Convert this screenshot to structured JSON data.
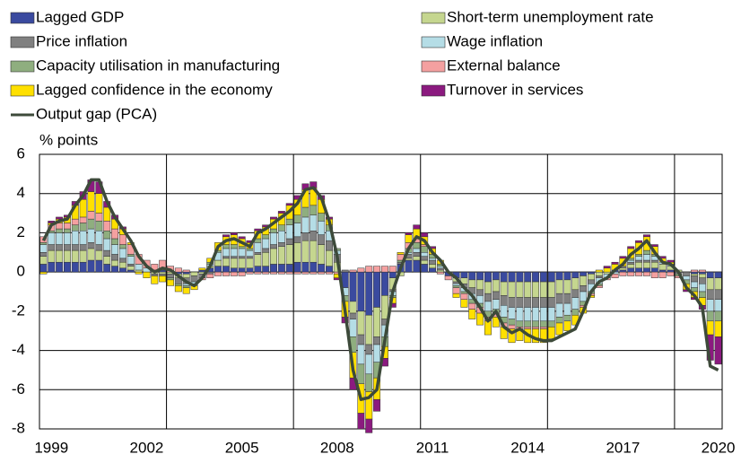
{
  "chart_data": {
    "type": "stacked-bar-line",
    "y_axis_label": "% points",
    "ylim": [
      -8,
      6
    ],
    "yticks": [
      -8,
      -6,
      -4,
      -2,
      0,
      2,
      4,
      6
    ],
    "grid": true,
    "categories": [
      null,
      "1999",
      null,
      null,
      null,
      null,
      null,
      null,
      null,
      null,
      null,
      null,
      null,
      "2002",
      null,
      null,
      null,
      null,
      null,
      null,
      null,
      null,
      null,
      null,
      null,
      "2005",
      null,
      null,
      null,
      null,
      null,
      null,
      null,
      null,
      null,
      null,
      null,
      "2008",
      null,
      null,
      null,
      null,
      null,
      null,
      null,
      null,
      null,
      null,
      null,
      "2011",
      null,
      null,
      null,
      null,
      null,
      null,
      null,
      null,
      null,
      null,
      null,
      "2014",
      null,
      null,
      null,
      null,
      null,
      null,
      null,
      null,
      null,
      null,
      null,
      "2017",
      null,
      null,
      null,
      null,
      null,
      null,
      null,
      null,
      null,
      null,
      null,
      "2020"
    ],
    "series": [
      {
        "name": "Lagged GDP",
        "color": "#3a4a9f",
        "values": [
          0.4,
          0.5,
          0.5,
          0.5,
          0.5,
          0.5,
          0.6,
          0.6,
          0.4,
          0.3,
          0.2,
          0.1,
          0.0,
          0.0,
          0.0,
          0.1,
          0.0,
          -0.1,
          -0.1,
          0.0,
          0.1,
          0.2,
          0.3,
          0.3,
          0.2,
          0.2,
          0.2,
          0.3,
          0.3,
          0.4,
          0.4,
          0.4,
          0.5,
          0.5,
          0.5,
          0.4,
          0.3,
          0.0,
          -0.8,
          -1.5,
          -2.0,
          -2.2,
          -1.8,
          -1.2,
          -0.3,
          0.4,
          0.6,
          0.6,
          0.4,
          0.2,
          0.0,
          -0.2,
          -0.3,
          -0.3,
          -0.4,
          -0.4,
          -0.5,
          -0.4,
          -0.5,
          -0.5,
          -0.5,
          -0.5,
          -0.5,
          -0.5,
          -0.5,
          -0.4,
          -0.4,
          -0.3,
          -0.2,
          -0.1,
          0.0,
          0.0,
          0.1,
          0.1,
          0.2,
          0.2,
          0.2,
          0.2,
          0.1,
          0.1,
          0.0,
          0.0,
          -0.1,
          -0.1,
          -0.3,
          -0.3
        ]
      },
      {
        "name": "Short-term unemployment rate",
        "color": "#c5d68f",
        "values": [
          0.4,
          0.6,
          0.6,
          0.6,
          0.6,
          0.6,
          0.6,
          0.5,
          0.4,
          0.3,
          0.3,
          0.2,
          0.1,
          0.0,
          -0.1,
          -0.1,
          -0.1,
          -0.2,
          -0.2,
          -0.2,
          -0.1,
          0.1,
          0.3,
          0.4,
          0.5,
          0.5,
          0.5,
          0.6,
          0.7,
          0.8,
          0.9,
          1.0,
          1.0,
          1.1,
          1.1,
          1.0,
          0.8,
          0.5,
          0.0,
          -0.6,
          -1.2,
          -1.5,
          -1.5,
          -1.2,
          -0.6,
          -0.2,
          0.1,
          0.2,
          0.2,
          0.2,
          0.1,
          0.0,
          -0.2,
          -0.3,
          -0.4,
          -0.5,
          -0.6,
          -0.6,
          -0.7,
          -0.8,
          -0.8,
          -0.8,
          -0.8,
          -0.8,
          -0.8,
          -0.7,
          -0.7,
          -0.6,
          -0.5,
          -0.3,
          -0.2,
          -0.1,
          0.0,
          0.1,
          0.2,
          0.3,
          0.3,
          0.3,
          0.3,
          0.2,
          0.1,
          0.0,
          -0.1,
          -0.2,
          -0.6,
          -0.6
        ]
      },
      {
        "name": "Price inflation",
        "color": "#808080",
        "values": [
          0.2,
          0.3,
          0.3,
          0.3,
          0.3,
          0.3,
          0.3,
          0.3,
          0.3,
          0.3,
          0.2,
          0.1,
          0.0,
          0.0,
          -0.1,
          -0.1,
          -0.2,
          -0.3,
          -0.3,
          -0.3,
          -0.2,
          -0.1,
          0.0,
          0.1,
          0.1,
          0.1,
          0.1,
          0.1,
          0.2,
          0.2,
          0.2,
          0.3,
          0.3,
          0.4,
          0.5,
          0.5,
          0.5,
          0.4,
          0.1,
          -0.3,
          -0.5,
          -0.5,
          -0.4,
          -0.3,
          -0.1,
          0.1,
          0.2,
          0.2,
          0.2,
          0.2,
          0.1,
          0.0,
          -0.1,
          -0.2,
          -0.3,
          -0.3,
          -0.4,
          -0.4,
          -0.5,
          -0.5,
          -0.5,
          -0.5,
          -0.5,
          -0.5,
          -0.5,
          -0.5,
          -0.5,
          -0.4,
          -0.3,
          -0.2,
          -0.1,
          0.0,
          0.0,
          0.1,
          0.1,
          0.1,
          0.1,
          0.1,
          0.0,
          0.0,
          -0.1,
          -0.2,
          -0.3,
          -0.3,
          -0.5,
          -0.5
        ]
      },
      {
        "name": "Wage inflation",
        "color": "#b5dde6",
        "values": [
          0.4,
          0.6,
          0.6,
          0.6,
          0.7,
          0.7,
          0.7,
          0.7,
          0.6,
          0.5,
          0.5,
          0.4,
          0.3,
          0.2,
          0.1,
          0.1,
          0.0,
          0.0,
          -0.1,
          -0.1,
          0.0,
          0.1,
          0.4,
          0.4,
          0.4,
          0.4,
          0.3,
          0.5,
          0.5,
          0.6,
          0.6,
          0.7,
          0.7,
          0.8,
          0.8,
          0.7,
          0.5,
          0.2,
          -0.4,
          -0.9,
          -1.0,
          -1.0,
          -0.9,
          -0.6,
          -0.2,
          0.0,
          0.1,
          0.2,
          0.2,
          0.1,
          0.1,
          0.0,
          -0.1,
          -0.2,
          -0.3,
          -0.4,
          -0.5,
          -0.5,
          -0.6,
          -0.6,
          -0.7,
          -0.7,
          -0.7,
          -0.7,
          -0.7,
          -0.7,
          -0.6,
          -0.6,
          -0.5,
          -0.4,
          -0.3,
          -0.2,
          -0.1,
          0.0,
          0.1,
          0.2,
          0.3,
          0.2,
          0.1,
          0.1,
          0.0,
          -0.2,
          -0.3,
          -0.4,
          -0.6,
          -0.6
        ]
      },
      {
        "name": "Capacity utilisation in manufacturing",
        "color": "#8fae7f",
        "values": [
          0.1,
          0.1,
          0.2,
          0.2,
          0.3,
          0.4,
          0.5,
          0.5,
          0.4,
          0.3,
          0.2,
          0.1,
          0.0,
          0.0,
          0.0,
          0.0,
          -0.1,
          -0.1,
          -0.1,
          -0.1,
          0.0,
          0.1,
          0.1,
          0.2,
          0.2,
          0.1,
          0.1,
          0.2,
          0.2,
          0.2,
          0.3,
          0.3,
          0.4,
          0.5,
          0.5,
          0.4,
          0.3,
          0.1,
          -0.3,
          -0.8,
          -1.0,
          -0.9,
          -0.8,
          -0.5,
          -0.1,
          0.1,
          0.2,
          0.3,
          0.3,
          0.2,
          0.1,
          0.0,
          -0.1,
          -0.1,
          -0.2,
          -0.2,
          -0.3,
          -0.2,
          -0.3,
          -0.3,
          -0.3,
          -0.3,
          -0.3,
          -0.3,
          -0.3,
          -0.3,
          -0.3,
          -0.3,
          -0.2,
          -0.1,
          -0.1,
          0.0,
          0.0,
          0.0,
          0.1,
          0.1,
          0.2,
          0.1,
          0.0,
          0.0,
          -0.1,
          -0.2,
          -0.2,
          -0.3,
          -0.5,
          -0.5
        ]
      },
      {
        "name": "External balance",
        "color": "#f4a0a0",
        "values": [
          0.3,
          0.3,
          0.3,
          0.3,
          0.3,
          0.3,
          0.4,
          0.4,
          0.5,
          0.5,
          0.5,
          0.5,
          0.5,
          0.4,
          0.3,
          0.4,
          0.3,
          0.2,
          0.1,
          0.0,
          -0.1,
          -0.2,
          -0.2,
          -0.2,
          -0.2,
          -0.2,
          -0.1,
          -0.1,
          -0.1,
          -0.1,
          -0.1,
          -0.1,
          -0.1,
          -0.1,
          -0.1,
          -0.1,
          -0.1,
          -0.1,
          0.0,
          0.1,
          0.2,
          0.3,
          0.3,
          0.3,
          0.3,
          0.3,
          0.3,
          0.2,
          0.1,
          0.0,
          -0.1,
          -0.2,
          -0.3,
          -0.3,
          -0.3,
          -0.3,
          -0.2,
          -0.2,
          -0.2,
          -0.2,
          -0.1,
          -0.1,
          -0.1,
          -0.1,
          0.0,
          0.0,
          0.0,
          0.0,
          -0.1,
          -0.1,
          -0.1,
          -0.1,
          -0.2,
          -0.2,
          -0.2,
          -0.2,
          -0.2,
          -0.3,
          -0.3,
          -0.2,
          -0.1,
          0.0,
          0.1,
          0.1,
          0.0,
          0.0
        ]
      },
      {
        "name": "Lagged confidence in the economy",
        "color": "#ffe000",
        "values": [
          -0.1,
          0.1,
          0.2,
          0.3,
          0.7,
          0.9,
          1.0,
          1.0,
          0.7,
          0.5,
          0.3,
          0.1,
          -0.1,
          -0.3,
          -0.4,
          -0.3,
          -0.3,
          -0.3,
          -0.3,
          -0.2,
          0.1,
          0.2,
          0.4,
          0.4,
          0.5,
          0.4,
          0.3,
          0.4,
          0.4,
          0.5,
          0.6,
          0.7,
          0.8,
          0.9,
          0.9,
          0.7,
          0.3,
          -0.2,
          -0.8,
          -1.3,
          -1.5,
          -1.4,
          -1.1,
          -0.6,
          -0.3,
          0.1,
          0.4,
          0.5,
          0.4,
          0.3,
          0.2,
          0.0,
          -0.2,
          -0.4,
          -0.5,
          -0.6,
          -0.7,
          -0.5,
          -0.6,
          -0.7,
          -0.6,
          -0.7,
          -0.7,
          -0.7,
          -0.6,
          -0.6,
          -0.5,
          -0.5,
          -0.3,
          -0.1,
          0.1,
          0.2,
          0.3,
          0.4,
          0.5,
          0.6,
          0.7,
          0.4,
          0.2,
          0.1,
          0.0,
          -0.3,
          -0.3,
          -0.4,
          -0.7,
          -0.8
        ]
      },
      {
        "name": "Turnover in services",
        "color": "#8b1a7f",
        "values": [
          0.0,
          0.1,
          0.1,
          0.1,
          0.2,
          0.4,
          0.6,
          0.6,
          0.3,
          0.2,
          0.1,
          0.0,
          0.0,
          0.0,
          0.0,
          0.0,
          0.0,
          0.0,
          0.0,
          0.0,
          0.0,
          0.0,
          0.0,
          0.1,
          0.1,
          0.1,
          0.1,
          0.1,
          0.1,
          0.1,
          0.1,
          0.1,
          0.2,
          0.3,
          0.3,
          0.2,
          0.1,
          -0.1,
          -0.3,
          -0.6,
          -0.8,
          -0.7,
          -0.6,
          -0.4,
          -0.2,
          0.0,
          0.1,
          0.2,
          0.2,
          0.1,
          0.0,
          0.0,
          0.0,
          0.0,
          0.0,
          0.0,
          0.0,
          0.0,
          0.0,
          0.0,
          0.0,
          0.0,
          0.0,
          0.0,
          0.0,
          0.0,
          0.0,
          0.0,
          0.0,
          0.0,
          0.0,
          0.1,
          0.1,
          0.1,
          0.1,
          0.1,
          0.1,
          0.1,
          0.1,
          0.1,
          0.0,
          -0.1,
          -0.1,
          -0.2,
          -1.3,
          -1.4
        ]
      }
    ],
    "line": {
      "name": "Output gap (PCA)",
      "color": "#3d4a3a",
      "values": [
        1.6,
        2.4,
        2.6,
        2.7,
        3.4,
        3.9,
        4.7,
        4.7,
        3.6,
        2.8,
        2.2,
        1.6,
        0.8,
        0.3,
        0.0,
        0.2,
        0.1,
        -0.2,
        -0.5,
        -0.7,
        -0.3,
        0.3,
        1.3,
        1.6,
        1.7,
        1.5,
        1.3,
        2.0,
        2.2,
        2.5,
        2.8,
        3.1,
        3.5,
        4.2,
        4.3,
        3.8,
        2.6,
        0.8,
        -2.0,
        -5.0,
        -6.5,
        -6.4,
        -6.0,
        -3.5,
        -1.0,
        0.2,
        1.2,
        1.8,
        1.6,
        1.0,
        0.6,
        0.0,
        -0.3,
        -0.8,
        -1.2,
        -1.8,
        -2.5,
        -2.0,
        -2.8,
        -3.1,
        -2.9,
        -3.2,
        -3.4,
        -3.5,
        -3.5,
        -3.3,
        -3.1,
        -2.9,
        -2.0,
        -1.0,
        -0.5,
        -0.3,
        0.1,
        0.4,
        0.9,
        1.2,
        1.6,
        1.0,
        0.5,
        0.4,
        0.0,
        -0.8,
        -1.2,
        -1.8,
        -4.8,
        -5.0
      ]
    }
  }
}
